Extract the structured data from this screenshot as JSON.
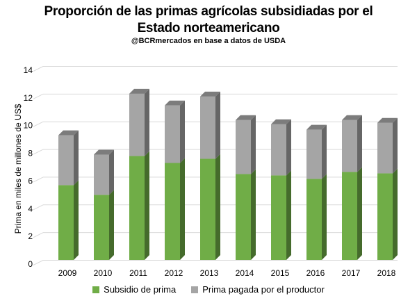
{
  "chart_data": {
    "type": "bar",
    "stacked": true,
    "title_lines": [
      "Proporción de las primas agrícolas subsidiadas por el",
      "Estado norteamericano"
    ],
    "subtitle": "@BCRmercados en base a datos de USDA",
    "xlabel": "",
    "ylabel": "Prima en miles de millones de US$",
    "ylim": [
      0,
      14
    ],
    "yticks": [
      0,
      2,
      4,
      6,
      8,
      10,
      12,
      14
    ],
    "grid": true,
    "legend_position": "bottom",
    "categories": [
      "2009",
      "2010",
      "2011",
      "2012",
      "2013",
      "2014",
      "2015",
      "2016",
      "2017",
      "2018"
    ],
    "series": [
      {
        "name": "Subsidio de prima",
        "color": "#70ad47",
        "values": [
          5.4,
          4.7,
          7.5,
          7.0,
          7.3,
          6.2,
          6.1,
          5.85,
          6.35,
          6.25
        ]
      },
      {
        "name": "Prima pagada por el productor",
        "color": "#a5a5a5",
        "values": [
          3.6,
          2.9,
          4.5,
          4.15,
          4.5,
          3.9,
          3.7,
          3.55,
          3.75,
          3.65
        ]
      }
    ]
  }
}
